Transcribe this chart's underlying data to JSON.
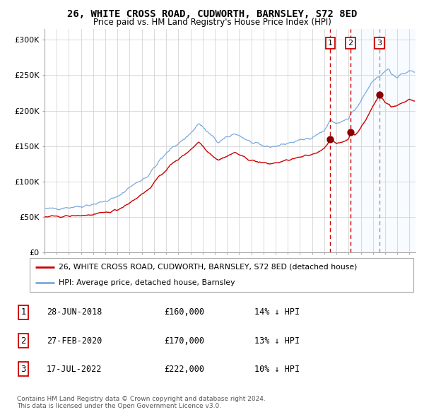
{
  "title": "26, WHITE CROSS ROAD, CUDWORTH, BARNSLEY, S72 8ED",
  "subtitle": "Price paid vs. HM Land Registry's House Price Index (HPI)",
  "ylabel_ticks": [
    "£0",
    "£50K",
    "£100K",
    "£150K",
    "£200K",
    "£250K",
    "£300K"
  ],
  "ytick_vals": [
    0,
    50000,
    100000,
    150000,
    200000,
    250000,
    300000
  ],
  "ylim": [
    0,
    315000
  ],
  "xlim_start": 1995.0,
  "xlim_end": 2025.5,
  "purchase_dates": [
    2018.487,
    2020.162,
    2022.538
  ],
  "purchase_prices": [
    160000,
    170000,
    222000
  ],
  "purchase_labels": [
    "1",
    "2",
    "3"
  ],
  "vline1_x": 2018.487,
  "vline2_x": 2020.162,
  "vline3_x": 2022.538,
  "legend1": "26, WHITE CROSS ROAD, CUDWORTH, BARNSLEY, S72 8ED (detached house)",
  "legend2": "HPI: Average price, detached house, Barnsley",
  "table_data": [
    [
      "1",
      "28-JUN-2018",
      "£160,000",
      "14% ↓ HPI"
    ],
    [
      "2",
      "27-FEB-2020",
      "£170,000",
      "13% ↓ HPI"
    ],
    [
      "3",
      "17-JUL-2022",
      "£222,000",
      "10% ↓ HPI"
    ]
  ],
  "footnote": "Contains HM Land Registry data © Crown copyright and database right 2024.\nThis data is licensed under the Open Government Licence v3.0.",
  "hpi_color": "#7aaadd",
  "property_color": "#cc0000",
  "vline12_color": "#cc0000",
  "vline3_color": "#999999",
  "shade_color": "#ddeeff",
  "marker_color": "#880000",
  "grid_color": "#cccccc",
  "bg_color": "#ffffff"
}
